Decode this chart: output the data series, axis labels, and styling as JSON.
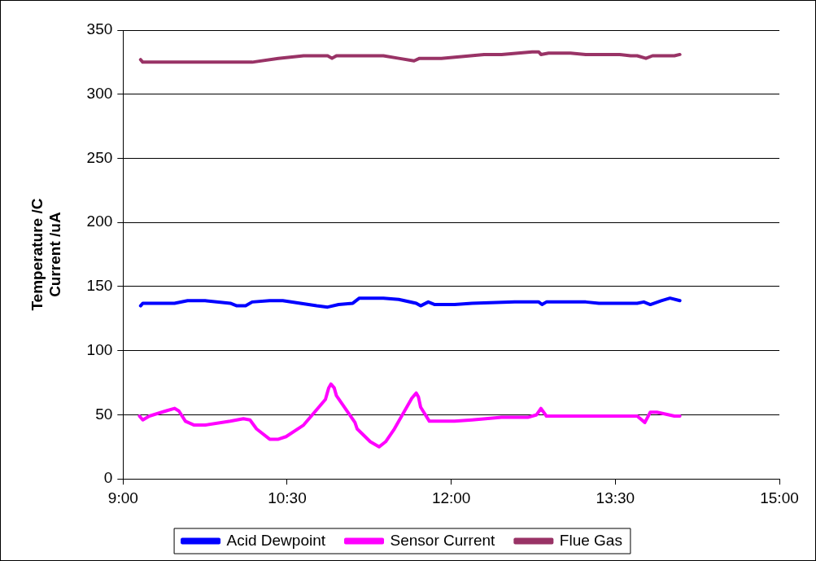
{
  "chart_data": {
    "type": "line",
    "ylabel": "Temperature /C\nCurrent /uA",
    "xlim": [
      9,
      15
    ],
    "xticks": [
      {
        "value": 9,
        "label": "9:00"
      },
      {
        "value": 10.5,
        "label": "10:30"
      },
      {
        "value": 12,
        "label": "12:00"
      },
      {
        "value": 13.5,
        "label": "13:30"
      },
      {
        "value": 15,
        "label": "15:00"
      }
    ],
    "ylim": [
      0,
      350
    ],
    "yticks": [
      0,
      50,
      100,
      150,
      200,
      250,
      300,
      350
    ],
    "grid": "y",
    "legend": "bottom",
    "marker": "none",
    "line_style": "solid",
    "series": [
      {
        "name": "Acid Dewpoint",
        "color": "#0000ff",
        "x": [
          9.16,
          9.18,
          9.47,
          9.59,
          9.75,
          9.98,
          10.04,
          10.12,
          10.18,
          10.34,
          10.46,
          10.77,
          10.87,
          10.97,
          11.1,
          11.16,
          11.38,
          11.52,
          11.68,
          11.72,
          11.79,
          11.85,
          12.03,
          12.19,
          12.58,
          12.8,
          12.83,
          12.87,
          13.23,
          13.35,
          13.7,
          13.76,
          13.82,
          13.92,
          14,
          14.09
        ],
        "values": [
          135,
          137,
          137,
          139,
          139,
          137,
          135,
          135,
          138,
          139,
          139,
          135,
          134,
          136,
          137,
          141,
          141,
          140,
          137,
          135,
          138,
          136,
          136,
          137,
          138,
          138,
          136,
          138,
          138,
          137,
          137,
          138,
          136,
          139,
          141,
          139
        ]
      },
      {
        "name": "Sensor Current",
        "color": "#ff00ff",
        "x": [
          9.15,
          9.18,
          9.24,
          9.39,
          9.47,
          9.51,
          9.57,
          9.65,
          9.75,
          9.98,
          10.04,
          10.1,
          10.16,
          10.22,
          10.34,
          10.42,
          10.49,
          10.65,
          10.85,
          10.88,
          10.9,
          10.93,
          10.95,
          11.12,
          11.14,
          11.26,
          11.34,
          11.4,
          11.48,
          11.64,
          11.68,
          11.7,
          11.72,
          11.8,
          12.03,
          12.19,
          12.46,
          12.7,
          12.78,
          12.82,
          12.87,
          12.95,
          13.7,
          13.77,
          13.82,
          13.88,
          14.04,
          14.09
        ],
        "values": [
          49,
          46,
          49,
          53,
          55,
          53,
          45,
          42,
          42,
          45,
          46,
          47,
          46,
          39,
          31,
          31,
          33,
          42,
          62,
          71,
          74,
          71,
          65,
          44,
          39,
          29,
          25,
          29,
          39,
          63,
          67,
          64,
          56,
          45,
          45,
          46,
          48,
          48,
          50,
          55,
          49,
          49,
          49,
          44,
          52,
          52,
          49,
          49
        ]
      },
      {
        "name": "Flue Gas",
        "color": "#993366",
        "x": [
          9.16,
          9.18,
          10.18,
          10.42,
          10.65,
          10.87,
          10.91,
          10.95,
          11.38,
          11.52,
          11.66,
          11.71,
          11.91,
          12.3,
          12.46,
          12.74,
          12.8,
          12.82,
          12.89,
          13.09,
          13.23,
          13.54,
          13.64,
          13.7,
          13.78,
          13.84,
          14.04,
          14.09
        ],
        "values": [
          327,
          325,
          325,
          328,
          330,
          330,
          328,
          330,
          330,
          328,
          326,
          328,
          328,
          331,
          331,
          333,
          333,
          331,
          332,
          332,
          331,
          331,
          330,
          330,
          328,
          330,
          330,
          331
        ]
      }
    ]
  }
}
